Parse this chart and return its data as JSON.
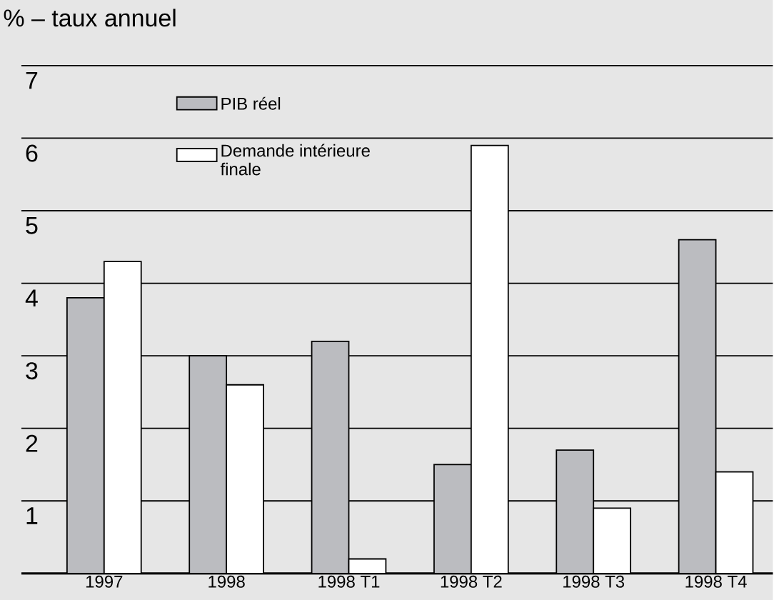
{
  "chart_data": {
    "type": "bar",
    "title": "% – taux annuel",
    "categories": [
      "1997",
      "1998",
      "1998 T1",
      "1998 T2",
      "1998 T3",
      "1998 T4"
    ],
    "series": [
      {
        "name": "PIB réel",
        "color": "#bbbcc0",
        "values": [
          3.8,
          3.0,
          3.2,
          1.5,
          1.7,
          4.6
        ]
      },
      {
        "name": "Demande intérieure finale",
        "color": "#ffffff",
        "values": [
          4.3,
          2.6,
          0.2,
          5.9,
          0.9,
          1.4
        ]
      }
    ],
    "ylim": [
      0,
      7
    ],
    "yticks": [
      1,
      2,
      3,
      4,
      5,
      6,
      7
    ],
    "grid": "y",
    "legend": "top left"
  }
}
